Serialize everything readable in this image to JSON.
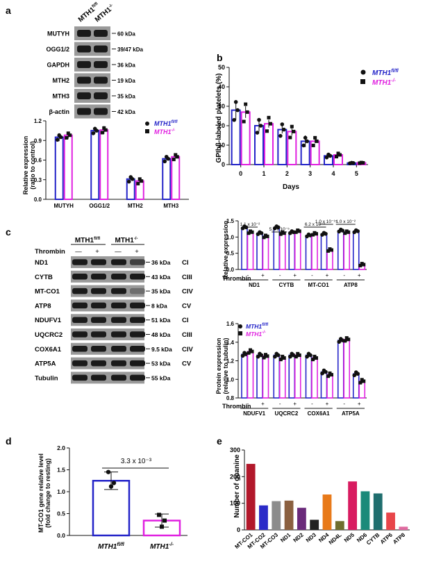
{
  "panels": {
    "a": "a",
    "b": "b",
    "c": "c",
    "d": "d",
    "e": "e"
  },
  "colors": {
    "fl": "#2323c8",
    "ko": "#e020e0",
    "gel_dark": "#1a1a1a",
    "bar_e": [
      "#b2182b",
      "#2b2bc8",
      "#8c8c8c",
      "#8b6040",
      "#6a2a7a",
      "#222222",
      "#e87a1a",
      "#6e6e2e",
      "#d81b60",
      "#1b8a7a",
      "#1f6e6e",
      "#e8464a",
      "#e06aa0"
    ]
  },
  "legend": {
    "fl_base": "MTH1",
    "fl_sup": "fl/fl",
    "ko_base": "MTH1",
    "ko_sup": "-/-"
  },
  "panel_a": {
    "col_labels": [
      "MTH1",
      "fl/fl",
      "MTH1",
      "-/-"
    ],
    "blots": [
      {
        "name": "MUTYH",
        "kda": "60 kDa"
      },
      {
        "name": "OGG1/2",
        "kda": "39/47 kDa"
      },
      {
        "name": "GAPDH",
        "kda": "36 kDa"
      },
      {
        "name": "MTH2",
        "kda": "19 kDa"
      },
      {
        "name": "MTH3",
        "kda": "35 kDa"
      },
      {
        "name": "β-actin",
        "kda": "42 kDa"
      }
    ],
    "chart_data": {
      "type": "bar",
      "ylabel": "Relative expression (ratio to control)",
      "ylabel_lines": [
        "Relative expression",
        "(ratio to control)"
      ],
      "ylim": [
        0,
        1.2
      ],
      "yticks": [
        "0.0",
        "0.3",
        "0.6",
        "0.9",
        "1.2"
      ],
      "categories": [
        "MUTYH",
        "OGG1/2",
        "MTH2",
        "MTH3"
      ],
      "series": [
        {
          "name": "MTH1 fl/fl",
          "values": [
            0.95,
            1.05,
            0.31,
            0.62
          ],
          "errors": [
            0.06,
            0.05,
            0.02,
            0.02
          ]
        },
        {
          "name": "MTH1 -/-",
          "values": [
            0.98,
            1.06,
            0.28,
            0.65
          ],
          "errors": [
            0.05,
            0.06,
            0.02,
            0.02
          ]
        }
      ]
    }
  },
  "panel_b": {
    "chart_data": {
      "type": "bar",
      "title": "",
      "xlabel": "Days",
      "ylabel": "GPIbβ-labeled platelets (%)",
      "ylim": [
        0,
        50
      ],
      "yticks": [
        "0",
        "10",
        "20",
        "30",
        "40",
        "50"
      ],
      "categories": [
        "0",
        "1",
        "2",
        "3",
        "4",
        "5"
      ],
      "series": [
        {
          "name": "MTH1 fl/fl",
          "values": [
            28,
            20,
            18,
            12,
            4.5,
            0.8
          ],
          "errors": [
            5,
            3,
            2,
            3,
            0.8,
            0.3
          ]
        },
        {
          "name": "MTH1 -/-",
          "values": [
            27,
            21,
            17,
            12,
            5,
            0.9
          ],
          "errors": [
            3,
            2,
            2,
            1,
            0.8,
            0.3
          ]
        }
      ]
    }
  },
  "panel_c": {
    "col_labels": [
      "MTH1",
      "fl/fl",
      "MTH1",
      "-/-"
    ],
    "thrombin_label": "Thrombin",
    "signs": [
      "—",
      "+",
      "—",
      "+"
    ],
    "blots": [
      {
        "name": "ND1",
        "kda": "36 kDa",
        "complex": "CI"
      },
      {
        "name": "CYTB",
        "kda": "43 kDa",
        "complex": "CIII"
      },
      {
        "name": "MT-CO1",
        "kda": "35 kDa",
        "complex": "CIV"
      },
      {
        "name": "ATP8",
        "kda": "8 kDa",
        "complex": "CV"
      },
      {
        "name": "NDUFV1",
        "kda": "51 kDa",
        "complex": "CI"
      },
      {
        "name": "UQCRC2",
        "kda": "48 kDa",
        "complex": "CIII"
      },
      {
        "name": "COX6A1",
        "kda": "9.5 kDa",
        "complex": "CIV"
      },
      {
        "name": "ATP5A",
        "kda": "53 kDa",
        "complex": "CV"
      },
      {
        "name": "Tubulin",
        "kda": "55 kDa",
        "complex": ""
      }
    ],
    "chart_top": {
      "type": "bar",
      "ylabel": "Relative expression",
      "ylim": [
        0,
        1.5
      ],
      "yticks": [
        "0.0",
        "0.5",
        "1.0",
        "1.5"
      ],
      "categories": [
        "ND1",
        "CYTB",
        "MT-CO1",
        "ATP8"
      ],
      "thrombin_label": "Thrombin",
      "signs": [
        "-",
        "+"
      ],
      "pvalues": [
        "1.1 x 10⁻²",
        "5.9 x 10⁻⁵",
        "6.2 x 10⁻⁹",
        "1.0 x 10⁻¹⁵",
        "1.0 x 10⁻²"
      ],
      "series": [
        {
          "name": "MTH1 fl/fl -",
          "values": [
            1.3,
            1.3,
            1.05,
            1.2
          ]
        },
        {
          "name": "MTH1 -/- -",
          "values": [
            1.15,
            1.12,
            1.1,
            1.15
          ]
        },
        {
          "name": "MTH1 fl/fl +",
          "values": [
            1.12,
            1.15,
            1.1,
            1.18
          ]
        },
        {
          "name": "MTH1 -/- +",
          "values": [
            1.02,
            1.18,
            0.6,
            0.15
          ]
        }
      ]
    },
    "chart_bottom": {
      "type": "bar",
      "ylabel": "Protein expression (relative to tubulin)",
      "ylabel_lines": [
        "Protein expression",
        "(relative to tubulin)"
      ],
      "ylim": [
        0.8,
        1.6
      ],
      "yticks": [
        "0.8",
        "1.0",
        "1.2",
        "1.4",
        "1.6"
      ],
      "categories": [
        "NDUFV1",
        "UQCRC2",
        "COX6A1",
        "ATP5A"
      ],
      "thrombin_label": "Thrombin",
      "signs": [
        "-",
        "+"
      ],
      "series": [
        {
          "name": "MTH1 fl/fl -",
          "values": [
            1.27,
            1.26,
            1.26,
            1.42
          ]
        },
        {
          "name": "MTH1 -/- -",
          "values": [
            1.3,
            1.23,
            1.23,
            1.43
          ]
        },
        {
          "name": "MTH1 fl/fl +",
          "values": [
            1.26,
            1.26,
            1.08,
            1.06
          ]
        },
        {
          "name": "MTH1 -/- +",
          "values": [
            1.25,
            1.26,
            1.05,
            0.98
          ]
        }
      ]
    }
  },
  "panel_d": {
    "chart_data": {
      "type": "bar",
      "ylabel": "MT-CO1 gene relative level (fold change to resting)",
      "ylabel_lines": [
        "MT-CO1 gene relative level",
        "(fold change to resting)"
      ],
      "ylim": [
        0,
        2.0
      ],
      "yticks": [
        "0.0",
        "0.5",
        "1.0",
        "1.5",
        "2.0"
      ],
      "categories": [
        "MTH1 fl/fl",
        "MTH1 -/-"
      ],
      "values": [
        1.25,
        0.34
      ],
      "errors": [
        0.2,
        0.15
      ],
      "pvalue": "3.3 x 10⁻³"
    }
  },
  "panel_e": {
    "chart_data": {
      "type": "bar",
      "ylabel": "Number of guanine",
      "ylim": [
        0,
        300
      ],
      "yticks": [
        "0",
        "100",
        "200",
        "300"
      ],
      "categories": [
        "MT-CO1",
        "MT-CO2",
        "MT-CO3",
        "ND1",
        "ND2",
        "ND3",
        "ND4",
        "ND4L",
        "ND5",
        "ND6",
        "CYTB",
        "ATP6",
        "ATP8"
      ],
      "values": [
        248,
        92,
        108,
        110,
        83,
        38,
        133,
        33,
        182,
        145,
        137,
        65,
        12
      ]
    }
  }
}
